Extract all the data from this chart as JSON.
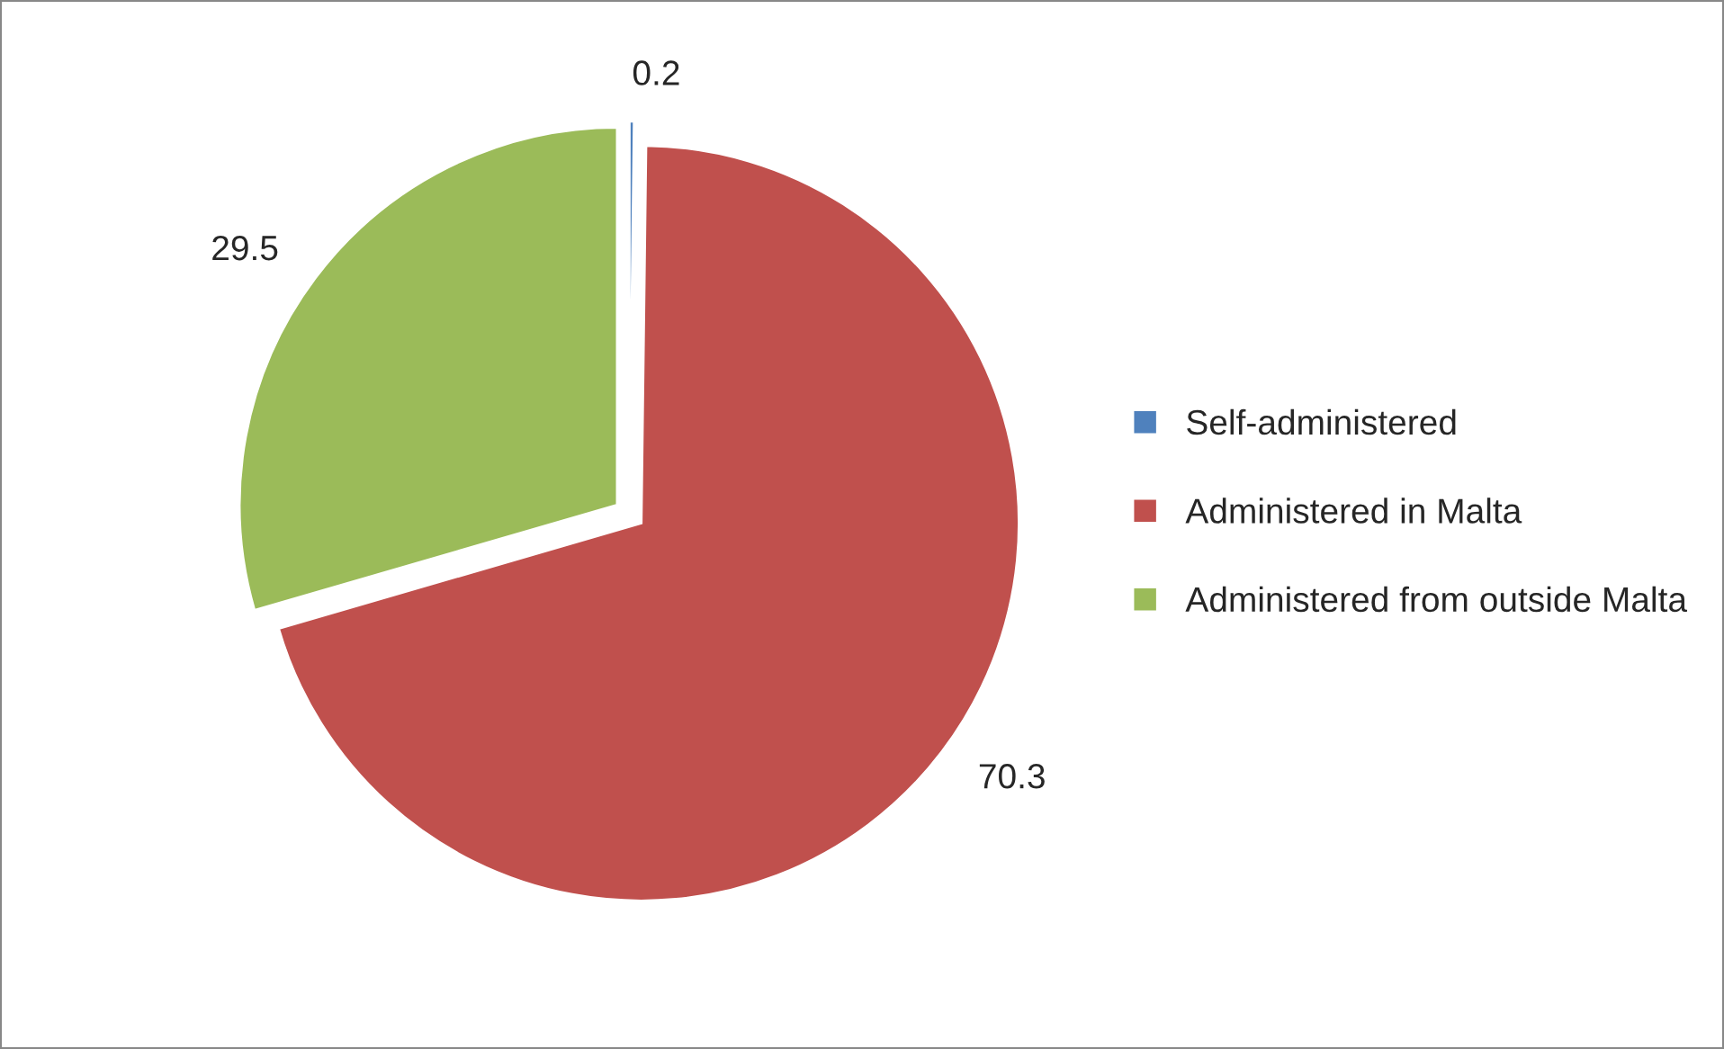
{
  "chart_data": {
    "type": "pie",
    "categories": [
      "Self-administered",
      "Administered in Malta",
      "Administered from outside Malta"
    ],
    "values": [
      0.2,
      70.3,
      29.5
    ],
    "colors": [
      "#4f81bd",
      "#c0504d",
      "#9bbb59"
    ],
    "data_labels": true,
    "legend": "right"
  }
}
